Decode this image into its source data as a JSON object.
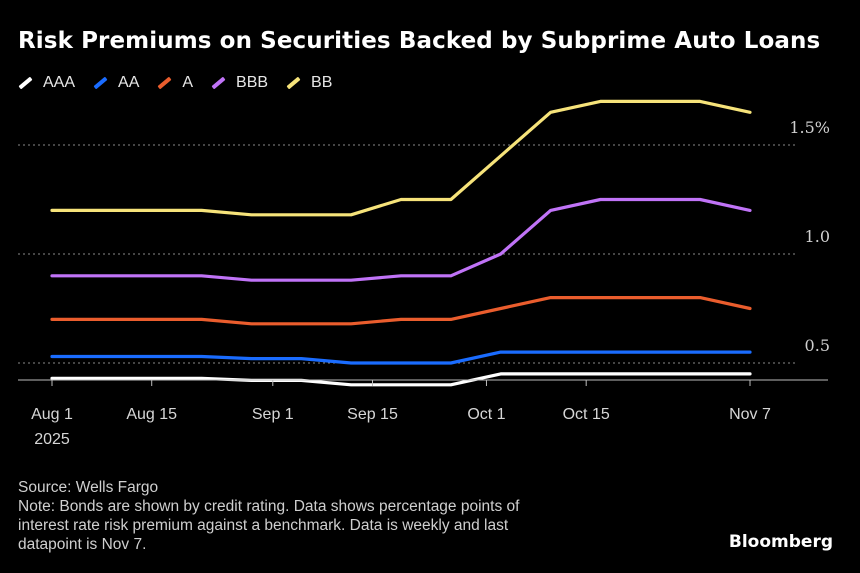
{
  "chart_data": {
    "type": "line",
    "title": "Risk Premiums on Securities Backed by Subprime Auto Loans",
    "xlabel": "",
    "ylabel": "",
    "ylim": [
      0.4,
      1.8
    ],
    "y_ticks": [
      0.5,
      1.0,
      1.5
    ],
    "y_tick_labels": [
      "0.5",
      "1.0",
      "1.5%"
    ],
    "x": [
      "2025-08-01",
      "2025-08-08",
      "2025-08-15",
      "2025-08-22",
      "2025-08-29",
      "2025-09-05",
      "2025-09-12",
      "2025-09-19",
      "2025-09-26",
      "2025-10-03",
      "2025-10-10",
      "2025-10-17",
      "2025-10-24",
      "2025-10-31",
      "2025-11-07"
    ],
    "x_tick_labels": [
      {
        "date": "2025-08-01",
        "label": "Aug 1",
        "sublabel": "2025"
      },
      {
        "date": "2025-08-15",
        "label": "Aug 15",
        "sublabel": ""
      },
      {
        "date": "2025-09-01",
        "label": "Sep 1",
        "sublabel": ""
      },
      {
        "date": "2025-09-15",
        "label": "Sep 15",
        "sublabel": ""
      },
      {
        "date": "2025-10-01",
        "label": "Oct 1",
        "sublabel": ""
      },
      {
        "date": "2025-10-15",
        "label": "Oct 15",
        "sublabel": ""
      },
      {
        "date": "2025-11-07",
        "label": "Nov 7",
        "sublabel": ""
      }
    ],
    "series": [
      {
        "name": "AAA",
        "color": "#ffffff",
        "values": [
          0.43,
          0.43,
          0.43,
          0.43,
          0.42,
          0.42,
          0.4,
          0.4,
          0.4,
          0.45,
          0.45,
          0.45,
          0.45,
          0.45,
          0.45
        ]
      },
      {
        "name": "AA",
        "color": "#1a6cff",
        "values": [
          0.53,
          0.53,
          0.53,
          0.53,
          0.52,
          0.52,
          0.5,
          0.5,
          0.5,
          0.55,
          0.55,
          0.55,
          0.55,
          0.55,
          0.55
        ]
      },
      {
        "name": "A",
        "color": "#ea5d2d",
        "values": [
          0.7,
          0.7,
          0.7,
          0.7,
          0.68,
          0.68,
          0.68,
          0.7,
          0.7,
          0.75,
          0.8,
          0.8,
          0.8,
          0.8,
          0.75
        ]
      },
      {
        "name": "BBB",
        "color": "#c073f7",
        "values": [
          0.9,
          0.9,
          0.9,
          0.9,
          0.88,
          0.88,
          0.88,
          0.9,
          0.9,
          1.0,
          1.2,
          1.25,
          1.25,
          1.25,
          1.2
        ]
      },
      {
        "name": "BB",
        "color": "#f6e37a",
        "values": [
          1.2,
          1.2,
          1.2,
          1.2,
          1.18,
          1.18,
          1.18,
          1.25,
          1.25,
          1.45,
          1.65,
          1.7,
          1.7,
          1.7,
          1.65
        ]
      }
    ]
  },
  "footer": {
    "source": "Source: Wells Fargo",
    "note_lines": [
      "Note: Bonds are shown by credit rating. Data shows percentage points of",
      "interest rate risk premium against a benchmark. Data is weekly and last",
      "datapoint is Nov 7."
    ],
    "brand": "Bloomberg"
  }
}
